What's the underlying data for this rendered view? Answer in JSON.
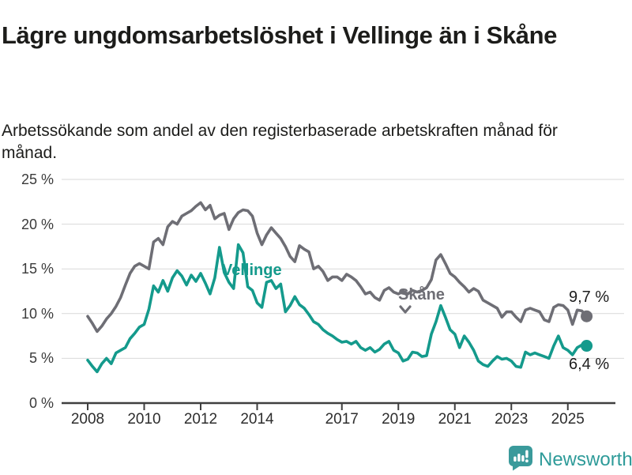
{
  "header": {
    "title": "Lägre ungdomsarbetslöshet i Vellinge än i Skåne",
    "subtitle": "Arbetssökande som andel av den registerbaserade arbetskraften månad för månad."
  },
  "chart_data": {
    "type": "line",
    "title": "Lägre ungdomsarbetslöshet i Vellinge än i Skåne",
    "xlabel": "",
    "ylabel": "Arbetssökande som andel av den registerbaserade arbetskraften",
    "ylim": [
      0,
      25
    ],
    "grid": true,
    "legend_position": "inline-labels-on-lines",
    "background": "#ffffff",
    "grid_color": "#d9d9d9",
    "axis_color": "#3f3f3f",
    "x_start_year": 2008,
    "x_step_months": 2,
    "x_end": "2025-09",
    "y_ticks": [
      {
        "value": 0,
        "label": "0 %"
      },
      {
        "value": 5,
        "label": "5 %"
      },
      {
        "value": 10,
        "label": "10 %"
      },
      {
        "value": 15,
        "label": "15 %"
      },
      {
        "value": 20,
        "label": "20 %"
      },
      {
        "value": 25,
        "label": "25 %"
      }
    ],
    "x_ticks": [
      {
        "year": 2008,
        "label": "2008"
      },
      {
        "year": 2010,
        "label": "2010"
      },
      {
        "year": 2012,
        "label": "2012"
      },
      {
        "year": 2014,
        "label": "2014"
      },
      {
        "year": 2017,
        "label": "2017"
      },
      {
        "year": 2019,
        "label": "2019"
      },
      {
        "year": 2021,
        "label": "2021"
      },
      {
        "year": 2023,
        "label": "2023"
      },
      {
        "year": 2025,
        "label": "2025"
      }
    ],
    "series": [
      {
        "name": "Skåne",
        "color": "#6e6e75",
        "end_label": "9,7 %",
        "end_value": 9.7,
        "values": [
          9.7,
          8.9,
          8.0,
          8.6,
          9.4,
          10.0,
          10.8,
          11.8,
          13.2,
          14.5,
          15.3,
          15.6,
          15.3,
          15.0,
          18.0,
          18.4,
          17.7,
          19.7,
          20.3,
          20.0,
          20.9,
          21.2,
          21.5,
          22.0,
          22.4,
          21.6,
          22.1,
          20.6,
          21.0,
          21.2,
          19.4,
          20.6,
          21.3,
          21.6,
          21.5,
          20.9,
          19.0,
          17.7,
          18.8,
          19.6,
          19.0,
          18.4,
          17.5,
          16.4,
          15.8,
          17.6,
          17.2,
          16.9,
          15.0,
          15.3,
          14.7,
          13.7,
          14.1,
          14.1,
          13.7,
          14.4,
          14.1,
          13.7,
          13.0,
          12.2,
          12.4,
          11.8,
          11.5,
          12.6,
          12.9,
          12.4,
          12.2,
          12.5,
          12.2,
          12.6,
          12.4,
          12.6,
          12.9,
          13.8,
          16.0,
          16.6,
          15.6,
          14.5,
          14.1,
          13.5,
          13.0,
          12.4,
          12.8,
          12.5,
          11.5,
          11.2,
          10.9,
          10.6,
          9.6,
          10.2,
          10.2,
          9.6,
          9.1,
          10.4,
          10.6,
          10.4,
          10.2,
          9.3,
          9.1,
          10.7,
          11.0,
          10.9,
          10.4,
          8.8,
          10.4,
          10.3,
          9.7
        ]
      },
      {
        "name": "Vellinge",
        "color": "#149a8c",
        "end_label": "6,4 %",
        "end_value": 6.4,
        "values": [
          4.8,
          4.1,
          3.5,
          4.4,
          5.0,
          4.4,
          5.6,
          5.9,
          6.2,
          7.2,
          7.8,
          8.5,
          8.8,
          10.5,
          13.1,
          12.4,
          13.7,
          12.5,
          14.0,
          14.8,
          14.2,
          13.2,
          14.3,
          13.6,
          14.5,
          13.4,
          12.2,
          14.0,
          17.4,
          14.6,
          13.5,
          12.8,
          17.7,
          16.8,
          13.0,
          12.6,
          11.2,
          10.7,
          13.5,
          13.7,
          12.8,
          13.3,
          10.2,
          10.9,
          11.9,
          11.0,
          10.6,
          9.9,
          9.1,
          8.8,
          8.2,
          7.8,
          7.5,
          7.1,
          6.8,
          6.9,
          6.6,
          6.9,
          6.2,
          5.9,
          6.2,
          5.7,
          6.0,
          6.6,
          6.9,
          5.9,
          5.6,
          4.7,
          4.9,
          5.7,
          5.6,
          5.2,
          5.3,
          7.7,
          9.1,
          10.9,
          9.6,
          8.2,
          7.7,
          6.2,
          7.5,
          6.8,
          5.9,
          4.7,
          4.3,
          4.1,
          4.7,
          5.2,
          4.9,
          5.0,
          4.7,
          4.1,
          4.0,
          5.7,
          5.4,
          5.6,
          5.4,
          5.2,
          5.0,
          6.4,
          7.5,
          6.2,
          5.9,
          5.4,
          6.2,
          6.5,
          6.4
        ]
      }
    ]
  },
  "footer": {
    "brand": "Newsworthy",
    "brand_color": "#2e9b99",
    "logo_bubble_color": "#3a9a9b"
  }
}
